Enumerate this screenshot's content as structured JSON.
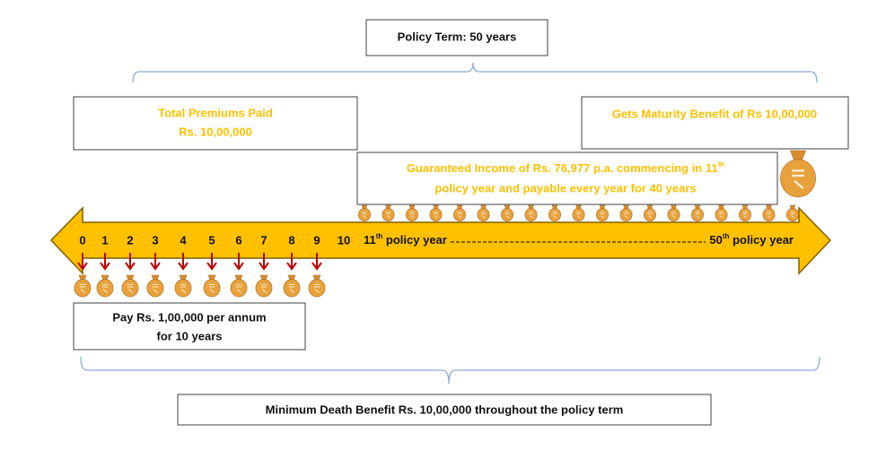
{
  "policy_term": "Policy Term: 50 years",
  "premiums": {
    "lines": [
      "Total Premiums Paid",
      "Rs. 10,00,000"
    ]
  },
  "maturity": "Gets Maturity Benefit of Rs 10,00,000",
  "income": {
    "line1": {
      "text": "Guaranteed Income of Rs. 76,977  p.a. commencing in 11",
      "sup": "th"
    },
    "line2": "policy year and payable every year for 40 years"
  },
  "timeline": {
    "years": [
      0,
      1,
      2,
      3,
      4,
      5,
      6,
      7,
      8,
      9,
      10
    ],
    "start": {
      "num": "11",
      "sup": "th",
      "text": " policy year"
    },
    "end": {
      "num": "50",
      "sup": "th",
      "text": " policy year"
    }
  },
  "payment": {
    "lines": [
      "Pay Rs. 1,00,000 per annum",
      "for 10 years"
    ]
  },
  "death_benefit": "Minimum Death Benefit Rs. 10,00,000 throughout the policy term"
}
